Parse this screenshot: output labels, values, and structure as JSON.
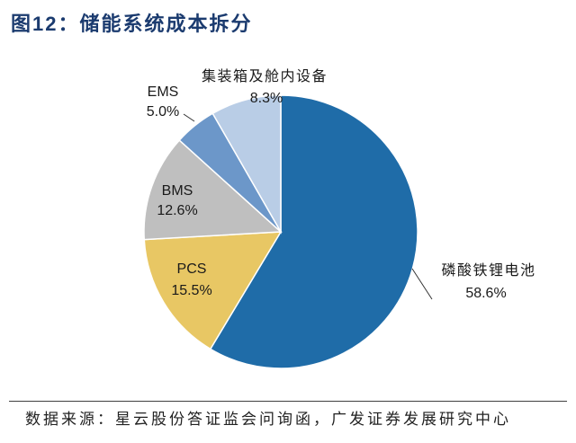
{
  "chart_data": {
    "type": "pie",
    "title": "图12：储能系统成本拆分",
    "slices": [
      {
        "label": "磷酸铁锂电池",
        "value": 58.6,
        "value_label": "58.6%",
        "color": "#1f6ca8"
      },
      {
        "label": "PCS",
        "value": 15.5,
        "value_label": "15.5%",
        "color": "#e8c764"
      },
      {
        "label": "BMS",
        "value": 12.6,
        "value_label": "12.6%",
        "color": "#bfbfbf"
      },
      {
        "label": "EMS",
        "value": 5.0,
        "value_label": "5.0%",
        "color": "#6c97c9"
      },
      {
        "label": "集装箱及舱内设备",
        "value": 8.3,
        "value_label": "8.3%",
        "color": "#b9cde6"
      }
    ]
  },
  "footer": {
    "source": "数据来源：星云股份答证监会问询函，广发证券发展研究中心"
  }
}
